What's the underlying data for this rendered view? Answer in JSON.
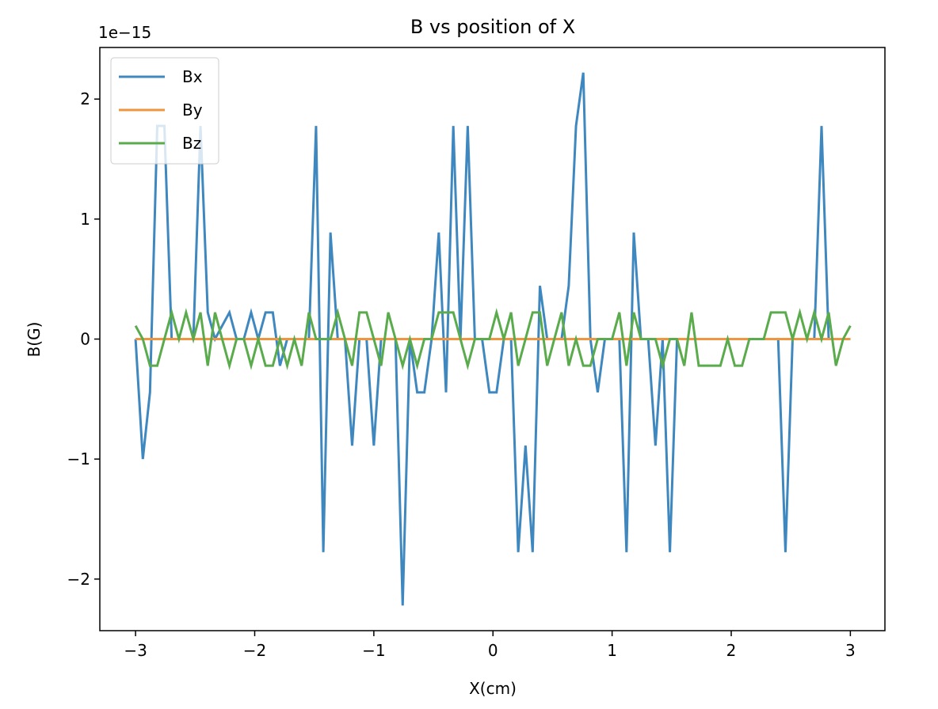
{
  "chart_data": {
    "type": "line",
    "title": "B vs position of X",
    "x_label": "X(cm)",
    "y_label": "B(G)",
    "y_offset_label": "1e−15",
    "x": [
      -3,
      -2.939,
      -2.879,
      -2.818,
      -2.758,
      -2.697,
      -2.636,
      -2.576,
      -2.515,
      -2.455,
      -2.394,
      -2.333,
      -2.273,
      -2.212,
      -2.152,
      -2.091,
      -2.03,
      -1.97,
      -1.909,
      -1.848,
      -1.788,
      -1.727,
      -1.667,
      -1.606,
      -1.545,
      -1.485,
      -1.424,
      -1.364,
      -1.303,
      -1.242,
      -1.182,
      -1.121,
      -1.061,
      -1,
      -0.939,
      -0.879,
      -0.818,
      -0.758,
      -0.697,
      -0.636,
      -0.576,
      -0.515,
      -0.455,
      -0.394,
      -0.333,
      -0.273,
      -0.212,
      -0.152,
      -0.091,
      -0.03,
      0.03,
      0.091,
      0.152,
      0.212,
      0.273,
      0.333,
      0.394,
      0.455,
      0.515,
      0.576,
      0.636,
      0.697,
      0.758,
      0.818,
      0.879,
      0.939,
      1,
      1.061,
      1.121,
      1.182,
      1.242,
      1.303,
      1.364,
      1.424,
      1.485,
      1.545,
      1.606,
      1.667,
      1.727,
      1.788,
      1.848,
      1.909,
      1.97,
      2.03,
      2.091,
      2.152,
      2.212,
      2.273,
      2.333,
      2.394,
      2.455,
      2.515,
      2.576,
      2.636,
      2.697,
      2.758,
      2.818,
      2.879,
      2.939,
      3
    ],
    "series": [
      {
        "name": "Bx",
        "color": "#3f88bf",
        "values": [
          0,
          -1.0,
          -0.444,
          1.776,
          1.776,
          0,
          0,
          0,
          0,
          1.776,
          0.222,
          0,
          0.111,
          0.222,
          0,
          0,
          0.222,
          0,
          0.222,
          0.222,
          -0.222,
          0,
          0,
          0,
          0,
          1.776,
          -1.776,
          0.888,
          0,
          0,
          -0.888,
          0,
          0,
          -0.888,
          0,
          0,
          0,
          -2.22,
          0,
          -0.444,
          -0.444,
          0,
          0.888,
          -0.444,
          1.776,
          0,
          1.776,
          0,
          0,
          -0.444,
          -0.444,
          0,
          0,
          -1.776,
          -0.888,
          -1.776,
          0.444,
          0,
          0,
          0,
          0.444,
          1.776,
          2.22,
          0,
          -0.444,
          0,
          0,
          0,
          -1.776,
          0.888,
          0,
          0,
          -0.888,
          0,
          -1.776,
          0,
          0,
          0,
          0,
          0,
          0,
          0,
          0,
          0,
          0,
          0,
          0,
          0,
          0,
          0,
          -1.776,
          0,
          0,
          0,
          0,
          1.776,
          0,
          0,
          0,
          0
        ]
      },
      {
        "name": "By",
        "color": "#f0953f",
        "values": [
          0,
          0,
          0,
          0,
          0,
          0,
          0,
          0,
          0,
          0,
          0,
          0,
          0,
          0,
          0,
          0,
          0,
          0,
          0,
          0,
          0,
          0,
          0,
          0,
          0,
          0,
          0,
          0,
          0,
          0,
          0,
          0,
          0,
          0,
          0,
          0,
          0,
          0,
          0,
          0,
          0,
          0,
          0,
          0,
          0,
          0,
          0,
          0,
          0,
          0,
          0,
          0,
          0,
          0,
          0,
          0,
          0,
          0,
          0,
          0,
          0,
          0,
          0,
          0,
          0,
          0,
          0,
          0,
          0,
          0,
          0,
          0,
          0,
          0,
          0,
          0,
          0,
          0,
          0,
          0,
          0,
          0,
          0,
          0,
          0,
          0,
          0,
          0,
          0,
          0,
          0,
          0,
          0,
          0,
          0,
          0,
          0,
          0,
          0,
          0
        ]
      },
      {
        "name": "Bz",
        "color": "#5aab4c",
        "values": [
          0.111,
          0,
          -0.222,
          -0.222,
          0,
          0.222,
          0,
          0.222,
          0,
          0.222,
          -0.222,
          0.222,
          0,
          -0.222,
          0,
          0,
          -0.222,
          0,
          -0.222,
          -0.222,
          0,
          -0.222,
          0,
          -0.222,
          0.222,
          0,
          0,
          0,
          0.222,
          0,
          -0.222,
          0.222,
          0.222,
          0,
          -0.222,
          0.222,
          0,
          -0.222,
          0,
          -0.222,
          0,
          0,
          0.222,
          0.222,
          0.222,
          0,
          -0.222,
          0,
          0,
          0,
          0.222,
          0,
          0.222,
          -0.222,
          0,
          0.222,
          0.222,
          -0.222,
          0,
          0.222,
          -0.222,
          0,
          -0.222,
          -0.222,
          0,
          0,
          0,
          0.222,
          -0.222,
          0.222,
          0,
          0,
          0,
          -0.222,
          0,
          0,
          -0.222,
          0.222,
          -0.222,
          -0.222,
          -0.222,
          -0.222,
          0,
          -0.222,
          -0.222,
          0,
          0,
          0,
          0.222,
          0.222,
          0.222,
          0,
          0.222,
          0,
          0.222,
          0,
          0.222,
          -0.222,
          0,
          0.111
        ]
      }
    ],
    "xlim": [
      -3.3,
      3.29
    ],
    "ylim": [
      -2.43,
      2.43
    ],
    "xticks": [
      {
        "value": -3,
        "label": "−3"
      },
      {
        "value": -2,
        "label": "−2"
      },
      {
        "value": -1,
        "label": "−1"
      },
      0,
      1,
      2,
      3
    ],
    "yticks": [
      {
        "value": -2,
        "label": "−2"
      },
      {
        "value": -1,
        "label": "−1"
      },
      0,
      1,
      2
    ],
    "legend": "upper left",
    "grid": false
  }
}
